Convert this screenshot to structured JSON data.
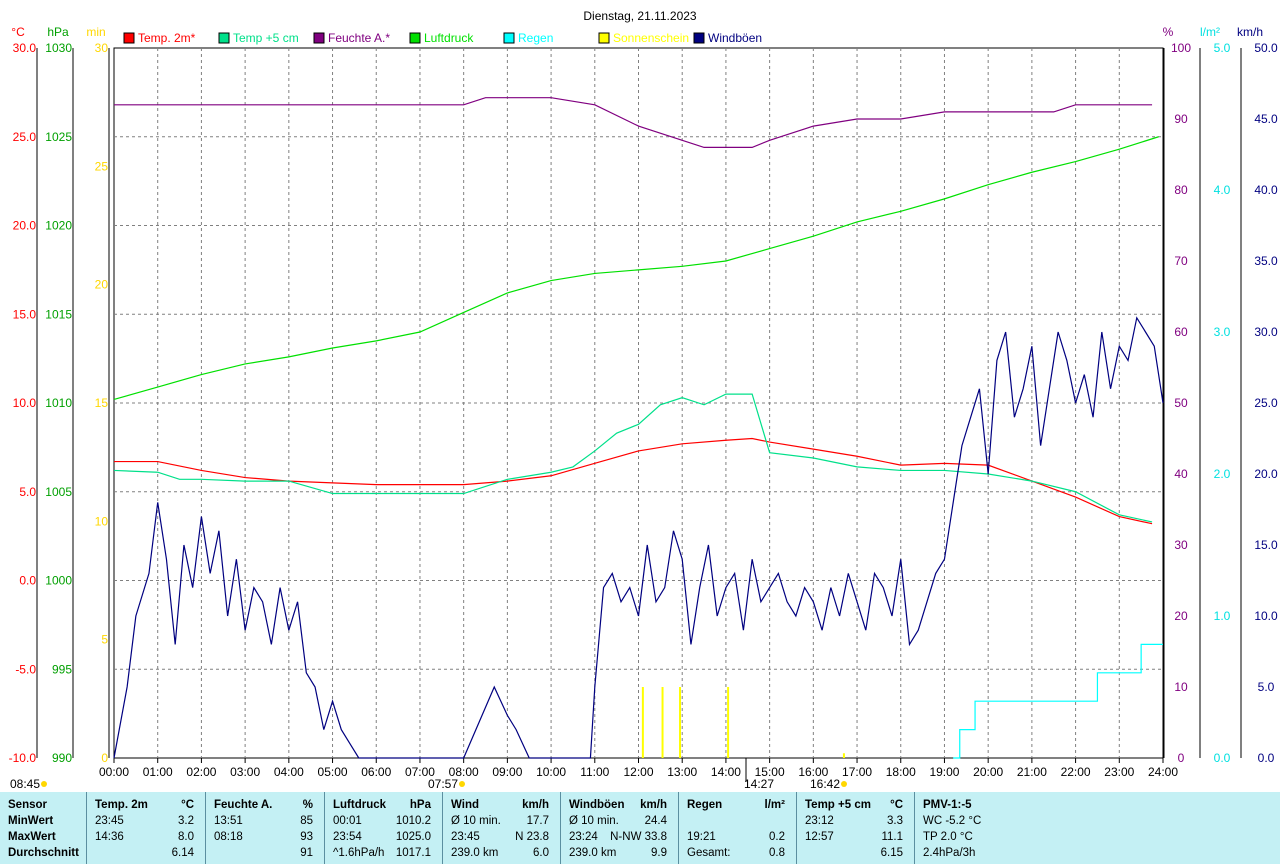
{
  "title": "Dienstag, 21.11.2023",
  "left_axes": [
    {
      "unit": "°C",
      "color": "#ff0000",
      "ticks": [
        "30.0",
        "25.0",
        "20.0",
        "15.0",
        "10.0",
        "5.0",
        "0.0",
        "-5.0",
        "-10.0"
      ]
    },
    {
      "unit": "hPa",
      "color": "#00a000",
      "ticks": [
        "1030",
        "1025",
        "1020",
        "1015",
        "1010",
        "1005",
        "1000",
        "995",
        "990"
      ]
    },
    {
      "unit": "min",
      "color": "#ffd700",
      "ticks": [
        "30",
        "25",
        "20",
        "15",
        "10",
        "5",
        "0"
      ]
    }
  ],
  "right_axes": [
    {
      "unit": "%",
      "color": "#800080",
      "ticks": [
        "100",
        "90",
        "80",
        "70",
        "60",
        "50",
        "40",
        "30",
        "20",
        "10",
        "0"
      ]
    },
    {
      "unit": "l/m²",
      "color": "#00e0e0",
      "ticks": [
        "5.0",
        "4.0",
        "3.0",
        "2.0",
        "1.0",
        "0.0"
      ]
    },
    {
      "unit": "km/h",
      "color": "#000080",
      "ticks": [
        "50.0",
        "45.0",
        "40.0",
        "35.0",
        "30.0",
        "25.0",
        "20.0",
        "15.0",
        "10.0",
        "5.0",
        "0.0"
      ]
    }
  ],
  "legend": [
    {
      "label": "Temp. 2m*",
      "color": "#ff0000"
    },
    {
      "label": "Temp +5 cm",
      "color": "#00e08a"
    },
    {
      "label": "Feuchte A.*",
      "color": "#800080"
    },
    {
      "label": "Luftdruck",
      "color": "#00e000"
    },
    {
      "label": "Regen",
      "color": "#00ffff"
    },
    {
      "label": "Sonnenschein",
      "color": "#ffff00"
    },
    {
      "label": "Windböen",
      "color": "#000080"
    }
  ],
  "x_ticks": [
    "00:00",
    "01:00",
    "02:00",
    "03:00",
    "04:00",
    "05:00",
    "06:00",
    "07:00",
    "08:00",
    "09:00",
    "10:00",
    "11:00",
    "12:00",
    "13:00",
    "14:00",
    "15:00",
    "16:00",
    "17:00",
    "18:00",
    "19:00",
    "20:00",
    "21:00",
    "22:00",
    "23:00",
    "24:00"
  ],
  "markers": {
    "sunrise_time": "07:57",
    "noon_time": "14:27",
    "sunset_time": "16:42",
    "left_time": "08:45"
  },
  "chart_data": {
    "type": "line",
    "title": "Dienstag, 21.11.2023",
    "x_unit": "hours",
    "x_range": [
      0,
      24
    ],
    "series": [
      {
        "name": "Temp. 2m*",
        "axis": "°C",
        "range": [
          -10,
          30
        ],
        "color": "#ff0000",
        "x": [
          0,
          1,
          2,
          3,
          4,
          5,
          6,
          7,
          8,
          9,
          10,
          11,
          12,
          13,
          14,
          14.6,
          15,
          16,
          17,
          18,
          19,
          20,
          21,
          22,
          23,
          23.75
        ],
        "y": [
          6.7,
          6.7,
          6.2,
          5.8,
          5.6,
          5.5,
          5.4,
          5.4,
          5.4,
          5.6,
          5.9,
          6.6,
          7.3,
          7.7,
          7.9,
          8.0,
          7.8,
          7.4,
          7.0,
          6.5,
          6.6,
          6.5,
          5.6,
          4.7,
          3.6,
          3.2
        ]
      },
      {
        "name": "Temp +5 cm",
        "axis": "°C",
        "range": [
          -10,
          30
        ],
        "color": "#00e08a",
        "x": [
          0,
          1,
          1.5,
          2,
          3,
          4,
          5,
          6,
          7,
          8,
          9,
          10,
          10.5,
          11,
          11.5,
          12,
          12.5,
          13,
          13.5,
          14,
          14.6,
          15,
          16,
          17,
          18,
          19,
          20,
          21,
          22,
          23,
          23.75
        ],
        "y": [
          6.2,
          6.1,
          5.7,
          5.7,
          5.6,
          5.6,
          4.9,
          4.9,
          4.9,
          4.9,
          5.7,
          6.1,
          6.4,
          7.3,
          8.3,
          8.8,
          9.9,
          10.3,
          9.9,
          10.5,
          10.5,
          7.2,
          6.9,
          6.4,
          6.2,
          6.2,
          6.0,
          5.6,
          5.0,
          3.7,
          3.3
        ]
      },
      {
        "name": "Feuchte A.*",
        "axis": "%",
        "range": [
          0,
          100
        ],
        "color": "#800080",
        "x": [
          0,
          1,
          2,
          3,
          4,
          5,
          6,
          7,
          8,
          8.5,
          9,
          10,
          11,
          12,
          13,
          13.5,
          14,
          14.6,
          15,
          16,
          17,
          18,
          19,
          20,
          21,
          21.5,
          22,
          23,
          23.75
        ],
        "y": [
          92,
          92,
          92,
          92,
          92,
          92,
          92,
          92,
          92,
          93,
          93,
          93,
          92,
          89,
          87,
          86,
          86,
          86,
          87,
          89,
          90,
          90,
          91,
          91,
          91,
          91,
          92,
          92,
          92
        ]
      },
      {
        "name": "Luftdruck",
        "axis": "hPa",
        "range": [
          990,
          1030
        ],
        "color": "#00e000",
        "x": [
          0,
          1,
          2,
          3,
          4,
          5,
          6,
          7,
          8,
          9,
          10,
          11,
          12,
          13,
          14,
          15,
          16,
          17,
          18,
          19,
          20,
          21,
          22,
          23,
          23.9
        ],
        "y": [
          1010.2,
          1010.9,
          1011.6,
          1012.2,
          1012.6,
          1013.1,
          1013.5,
          1014.0,
          1015.1,
          1016.2,
          1016.9,
          1017.3,
          1017.5,
          1017.7,
          1018.0,
          1018.7,
          1019.4,
          1020.2,
          1020.8,
          1021.5,
          1022.3,
          1023.0,
          1023.6,
          1024.3,
          1025.0
        ]
      },
      {
        "name": "Regen",
        "axis": "l/m²",
        "range": [
          0,
          5
        ],
        "color": "#00ffff",
        "x": [
          19.2,
          19.35,
          19.55,
          19.7,
          21.0,
          21.5,
          22.0,
          22.5,
          23.0,
          23.3,
          23.5,
          24.0
        ],
        "y": [
          0.0,
          0.2,
          0.2,
          0.4,
          0.4,
          0.4,
          0.4,
          0.6,
          0.6,
          0.6,
          0.8,
          0.8
        ]
      },
      {
        "name": "Windböen",
        "axis": "km/h",
        "range": [
          0,
          50
        ],
        "color": "#000080",
        "x": [
          0,
          0.3,
          0.5,
          0.8,
          1.0,
          1.2,
          1.4,
          1.6,
          1.8,
          2.0,
          2.2,
          2.4,
          2.6,
          2.8,
          3.0,
          3.2,
          3.4,
          3.6,
          3.8,
          4.0,
          4.2,
          4.4,
          4.6,
          4.8,
          5.0,
          5.2,
          5.4,
          5.6,
          5.8,
          6.0,
          7.0,
          8.0,
          8.7,
          9.0,
          9.2,
          9.5,
          10.0,
          10.5,
          10.9,
          11.0,
          11.2,
          11.4,
          11.6,
          11.8,
          12.0,
          12.2,
          12.4,
          12.6,
          12.8,
          13.0,
          13.2,
          13.4,
          13.6,
          13.8,
          14.0,
          14.2,
          14.4,
          14.6,
          14.8,
          15.0,
          15.2,
          15.4,
          15.6,
          15.8,
          16.0,
          16.2,
          16.4,
          16.6,
          16.8,
          17.0,
          17.2,
          17.4,
          17.6,
          17.8,
          18.0,
          18.2,
          18.4,
          18.6,
          18.8,
          19.0,
          19.2,
          19.4,
          19.6,
          19.8,
          20.0,
          20.2,
          20.4,
          20.6,
          20.8,
          21.0,
          21.2,
          21.4,
          21.6,
          21.8,
          22.0,
          22.2,
          22.4,
          22.6,
          22.8,
          23.0,
          23.2,
          23.4,
          23.6,
          23.8,
          24.0
        ],
        "y": [
          0,
          5,
          10,
          13,
          18,
          14,
          8,
          15,
          12,
          17,
          13,
          16,
          10,
          14,
          9,
          12,
          11,
          8,
          12,
          9,
          11,
          6,
          5,
          2,
          4,
          2,
          1,
          0,
          0,
          0,
          0,
          0,
          5,
          3,
          2,
          0,
          0,
          0,
          0,
          5,
          12,
          13,
          11,
          12,
          10,
          15,
          11,
          12,
          16,
          14,
          8,
          12,
          15,
          10,
          12,
          13,
          9,
          14,
          11,
          12,
          13,
          11,
          10,
          12,
          11,
          9,
          12,
          10,
          13,
          11,
          9,
          13,
          12,
          10,
          14,
          8,
          9,
          11,
          13,
          14,
          18,
          22,
          24,
          26,
          20,
          28,
          30,
          24,
          26,
          29,
          22,
          26,
          30,
          28,
          25,
          27,
          24,
          30,
          26,
          29,
          28,
          31,
          30,
          29,
          25
        ]
      }
    ],
    "sunshine": {
      "axis": "min",
      "range": [
        0,
        30
      ],
      "color": "#ffff00",
      "x": [
        12.1,
        12.55,
        12.95,
        14.05,
        16.7
      ],
      "y": [
        3.0,
        3.0,
        3.0,
        3.0,
        0.2
      ]
    }
  },
  "summary": {
    "row_labels": [
      "Sensor",
      "MinWert",
      "MaxWert",
      "Durchschnitt"
    ],
    "columns": [
      {
        "header": "Temp. 2m",
        "unit": "°C",
        "rows": [
          [
            "23:45",
            "3.2"
          ],
          [
            "14:36",
            "8.0"
          ],
          [
            "",
            "6.14"
          ]
        ]
      },
      {
        "header": "Feuchte A.",
        "unit": "%",
        "rows": [
          [
            "13:51",
            "85"
          ],
          [
            "08:18",
            "93"
          ],
          [
            "",
            "91"
          ]
        ]
      },
      {
        "header": "Luftdruck",
        "unit": "hPa",
        "rows": [
          [
            "00:01",
            "1010.2"
          ],
          [
            "23:54",
            "1025.0"
          ],
          [
            "^1.6hPa/h",
            "1017.1"
          ]
        ]
      },
      {
        "header": "Wind",
        "unit": "km/h",
        "rows": [
          [
            "Ø 10 min.",
            "17.7"
          ],
          [
            "23:45",
            "N 23.8"
          ],
          [
            "239.0 km",
            "6.0"
          ]
        ]
      },
      {
        "header": "Windböen",
        "unit": "km/h",
        "rows": [
          [
            "Ø 10 min.",
            "24.4"
          ],
          [
            "23:24",
            "N-NW 33.8"
          ],
          [
            "239.0 km",
            "9.9"
          ]
        ]
      },
      {
        "header": "Regen",
        "unit": "l/m²",
        "rows": [
          [
            "",
            ""
          ],
          [
            "19:21",
            "0.2"
          ],
          [
            "Gesamt:",
            "0.8"
          ]
        ]
      },
      {
        "header": "Temp +5 cm",
        "unit": "°C",
        "rows": [
          [
            "23:12",
            "3.3"
          ],
          [
            "12:57",
            "11.1"
          ],
          [
            "",
            "6.15"
          ]
        ]
      },
      {
        "header": "PMV-1:-5",
        "unit": "",
        "rows": [
          [
            "WC -5.2 °C",
            ""
          ],
          [
            "TP 2.0 °C",
            ""
          ],
          [
            "2.4hPa/3h",
            ""
          ]
        ]
      }
    ]
  }
}
